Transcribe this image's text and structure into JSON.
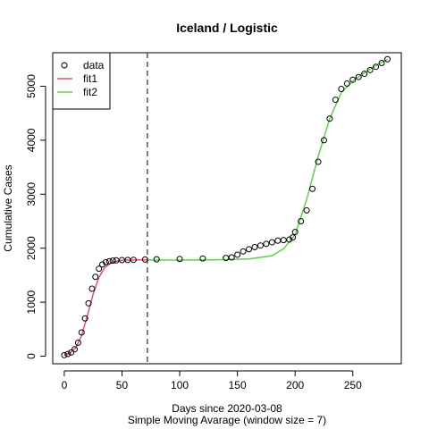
{
  "chart_data": {
    "type": "scatter",
    "title": "Iceland / Logistic",
    "xlabel": "Days since 2020-03-08",
    "xlabel2": "Simple Moving Avarage (window size = 7)",
    "ylabel": "Cumulative Cases",
    "xlim": [
      -10,
      292
    ],
    "ylim": [
      -140,
      5620
    ],
    "xticks": [
      0,
      50,
      100,
      150,
      200,
      250
    ],
    "yticks": [
      0,
      1000,
      2000,
      3000,
      4000,
      5000
    ],
    "vline_x": 72,
    "legend": {
      "position": "top-left",
      "items": [
        {
          "label": "data",
          "marker": "circle",
          "color": "#000000"
        },
        {
          "label": "fit1",
          "marker": "line",
          "color": "#df536b"
        },
        {
          "label": "fit2",
          "marker": "line",
          "color": "#61d04f"
        }
      ]
    },
    "series": [
      {
        "name": "data",
        "kind": "points",
        "color": "#000000",
        "x": [
          0,
          3,
          6,
          9,
          12,
          15,
          18,
          21,
          24,
          27,
          30,
          33,
          36,
          39,
          42,
          45,
          50,
          55,
          60,
          70,
          80,
          100,
          120,
          140,
          145,
          150,
          155,
          160,
          165,
          170,
          175,
          180,
          185,
          190,
          195,
          198,
          200,
          205,
          210,
          215,
          220,
          225,
          230,
          235,
          240,
          245,
          250,
          255,
          260,
          265,
          270,
          275,
          280
        ],
        "y": [
          20,
          40,
          70,
          130,
          250,
          440,
          700,
          980,
          1250,
          1470,
          1620,
          1700,
          1740,
          1760,
          1770,
          1775,
          1780,
          1782,
          1785,
          1790,
          1795,
          1800,
          1810,
          1820,
          1830,
          1880,
          1940,
          1980,
          2020,
          2050,
          2080,
          2110,
          2140,
          2150,
          2160,
          2200,
          2300,
          2500,
          2700,
          3100,
          3600,
          4000,
          4400,
          4750,
          4950,
          5050,
          5120,
          5170,
          5230,
          5300,
          5360,
          5430,
          5500
        ]
      },
      {
        "name": "fit1",
        "kind": "line",
        "color": "#df536b",
        "x": [
          0,
          5,
          10,
          15,
          20,
          25,
          30,
          35,
          40,
          45,
          50,
          55,
          60,
          65,
          72
        ],
        "y": [
          20,
          60,
          160,
          380,
          750,
          1150,
          1460,
          1640,
          1720,
          1760,
          1775,
          1780,
          1782,
          1784,
          1785
        ]
      },
      {
        "name": "fit2",
        "kind": "line",
        "color": "#61d04f",
        "x": [
          72,
          100,
          130,
          160,
          180,
          190,
          200,
          210,
          220,
          230,
          240,
          250,
          260,
          270,
          280
        ],
        "y": [
          1780,
          1780,
          1785,
          1800,
          1860,
          1990,
          2250,
          2900,
          3700,
          4400,
          4880,
          5100,
          5250,
          5380,
          5500
        ]
      }
    ]
  }
}
